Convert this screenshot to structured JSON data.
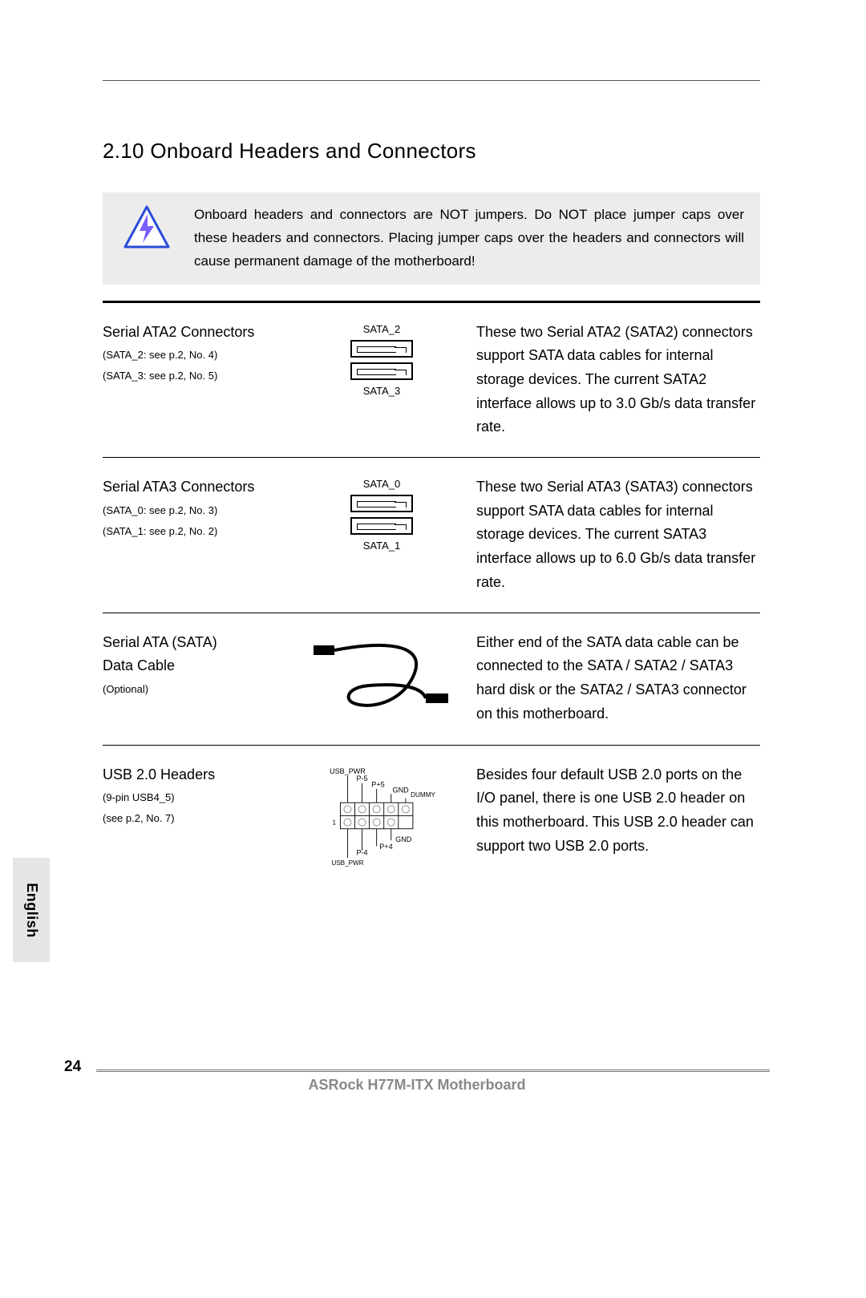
{
  "section": {
    "number": "2.10",
    "title": "Onboard Headers and Connectors"
  },
  "warning": {
    "text": "Onboard headers and connectors are NOT jumpers. Do NOT place jumper caps over these headers and connectors. Placing jumper caps over the headers and connectors will cause permanent damage of the motherboard!",
    "icon_colors": {
      "stroke": "#2a4bd8",
      "fill": "#ffffff",
      "bolt": "#7a5fff"
    }
  },
  "rows": [
    {
      "title": "Serial ATA2 Connectors",
      "subs": [
        "(SATA_2: see p.2,  No. 4)",
        "(SATA_3: see p.2,  No. 5)"
      ],
      "diagram": {
        "type": "sata_pair",
        "top_label": "SATA_2",
        "bottom_label": "SATA_3"
      },
      "desc": "These two Serial ATA2 (SATA2) connectors support SATA data cables for internal storage devices. The current SATA2 interface allows up to 3.0 Gb/s data transfer rate."
    },
    {
      "title": "Serial ATA3 Connectors",
      "subs": [
        "(SATA_0: see p.2,  No. 3)",
        "(SATA_1: see p.2,  No. 2)"
      ],
      "diagram": {
        "type": "sata_pair",
        "top_label": "SATA_0",
        "bottom_label": "SATA_1"
      },
      "desc": "These two Serial ATA3 (SATA3) connectors support SATA data cables for internal storage devices. The current SATA3 interface allows up to 6.0 Gb/s data transfer rate."
    },
    {
      "title": "Serial ATA (SATA) Data Cable",
      "subs": [
        "(Optional)"
      ],
      "diagram": {
        "type": "cable"
      },
      "desc": "Either end of the SATA data cable can be connected to the SATA / SATA2 / SATA3 hard disk or the SATA2 / SATA3 connector on this motherboard."
    },
    {
      "title": "USB 2.0 Headers",
      "subs": [
        "(9-pin USB4_5)",
        "(see p.2,  No. 7)"
      ],
      "diagram": {
        "type": "usb_header",
        "labels": {
          "top": [
            "USB_PWR",
            "P-5",
            "P+5",
            "GND",
            "DUMMY"
          ],
          "bottom": [
            "1",
            "P-4",
            "P+4",
            "GND"
          ],
          "bottom_left": "USB_PWR"
        }
      },
      "desc": "Besides four default USB 2.0 ports on the I/O panel, there is one USB 2.0 header on this motherboard. This USB 2.0 header can support two USB 2.0 ports."
    }
  ],
  "language_tab": "English",
  "footer": {
    "page_number": "24",
    "product": "ASRock  H77M-ITX  Motherboard"
  }
}
